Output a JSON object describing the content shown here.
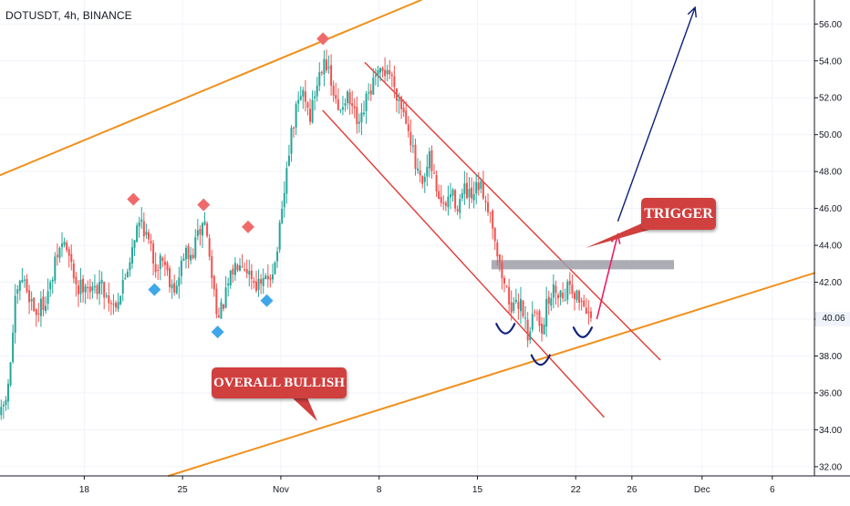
{
  "header": {
    "symbol": "DOTUSDT",
    "interval": "4h",
    "exchange": "BINANCE",
    "separator": ", "
  },
  "colors": {
    "up": "#26a69a",
    "down": "#ef5350",
    "channel": "#f0901c",
    "downtrend": "#e53935",
    "resistance_box": "#9e9ea8",
    "callout": "#d0403f",
    "target_arrow": "#0d1f7a",
    "trigger_arrow": "#e91e63",
    "pivot_high": "#ef6b6b",
    "pivot_low": "#3fa7e8",
    "cup": "#12227a",
    "axis_text": "#131722",
    "grid": "#e0e3eb"
  },
  "callouts": {
    "trigger": "TRIGGER",
    "overall_bullish": "OVERALL BULLISH"
  },
  "chart_data": {
    "type": "candlestick",
    "title": "DOTUSDT, 4h, BINANCE",
    "y_axis": {
      "side": "right",
      "range": [
        31.5,
        57.3
      ],
      "ticks": [
        32,
        34,
        36,
        38,
        40,
        42,
        44,
        46,
        48,
        50,
        52,
        54,
        56
      ],
      "tick_labels": [
        "32.00",
        "34.00",
        "36.00",
        "38.00",
        "40.00",
        "42.00",
        "44.00",
        "46.00",
        "48.00",
        "50.00",
        "52.00",
        "54.00",
        "56.00"
      ],
      "last_price": 40.06,
      "last_price_label": "40.06"
    },
    "x_axis": {
      "range": [
        "2021-10-12",
        "2021-12-09"
      ],
      "ticks": [
        {
          "date": "2021-10-18",
          "label": "18"
        },
        {
          "date": "2021-10-25",
          "label": "25"
        },
        {
          "date": "2021-11-01",
          "label": "Nov"
        },
        {
          "date": "2021-11-08",
          "label": "8"
        },
        {
          "date": "2021-11-15",
          "label": "15"
        },
        {
          "date": "2021-11-22",
          "label": "22"
        },
        {
          "date": "2021-11-26",
          "label": "26"
        },
        {
          "date": "2021-12-01",
          "label": "Dec"
        },
        {
          "date": "2021-12-06",
          "label": "6"
        }
      ]
    },
    "price_path": [
      [
        "2021-10-12",
        34.8
      ],
      [
        "2021-10-12T12:00",
        36.2
      ],
      [
        "2021-10-13",
        40.8
      ],
      [
        "2021-10-13T12:00",
        42.2
      ],
      [
        "2021-10-14",
        41.3
      ],
      [
        "2021-10-14T12:00",
        40.3
      ],
      [
        "2021-10-15",
        40.9
      ],
      [
        "2021-10-15T12:00",
        41.7
      ],
      [
        "2021-10-16",
        43.5
      ],
      [
        "2021-10-16T12:00",
        44.2
      ],
      [
        "2021-10-17",
        42.8
      ],
      [
        "2021-10-17T12:00",
        41.6
      ],
      [
        "2021-10-18",
        42.1
      ],
      [
        "2021-10-18T12:00",
        41.4
      ],
      [
        "2021-10-19",
        42.0
      ],
      [
        "2021-10-19T12:00",
        41.3
      ],
      [
        "2021-10-20",
        40.8
      ],
      [
        "2021-10-20T12:00",
        41.4
      ],
      [
        "2021-10-21",
        42.8
      ],
      [
        "2021-10-21T12:00",
        44.6
      ],
      [
        "2021-10-22",
        45.4
      ],
      [
        "2021-10-22T12:00",
        44.1
      ],
      [
        "2021-10-23",
        42.9
      ],
      [
        "2021-10-23T12:00",
        43.4
      ],
      [
        "2021-10-24",
        42.2
      ],
      [
        "2021-10-24T12:00",
        41.6
      ],
      [
        "2021-10-25",
        43.6
      ],
      [
        "2021-10-25T12:00",
        43.2
      ],
      [
        "2021-10-26",
        44.5
      ],
      [
        "2021-10-26T12:00",
        45.4
      ],
      [
        "2021-10-27",
        42.3
      ],
      [
        "2021-10-27T12:00",
        40.0
      ],
      [
        "2021-10-28",
        41.3
      ],
      [
        "2021-10-28T12:00",
        42.6
      ],
      [
        "2021-10-29",
        43.4
      ],
      [
        "2021-10-29T12:00",
        42.8
      ],
      [
        "2021-10-30",
        42.1
      ],
      [
        "2021-10-30T12:00",
        41.7
      ],
      [
        "2021-10-31",
        42.3
      ],
      [
        "2021-10-31T12:00",
        43.0
      ],
      [
        "2021-11-01",
        45.6
      ],
      [
        "2021-11-01T12:00",
        49.2
      ],
      [
        "2021-11-02",
        51.3
      ],
      [
        "2021-11-02T12:00",
        52.4
      ],
      [
        "2021-11-03",
        51.0
      ],
      [
        "2021-11-03T12:00",
        52.8
      ],
      [
        "2021-11-04",
        54.4
      ],
      [
        "2021-11-04T12:00",
        52.6
      ],
      [
        "2021-11-05",
        51.2
      ],
      [
        "2021-11-05T12:00",
        52.1
      ],
      [
        "2021-11-06",
        51.4
      ],
      [
        "2021-11-06T12:00",
        50.2
      ],
      [
        "2021-11-07",
        51.8
      ],
      [
        "2021-11-07T12:00",
        52.8
      ],
      [
        "2021-11-08",
        53.2
      ],
      [
        "2021-11-08T12:00",
        53.6
      ],
      [
        "2021-11-09",
        52.7
      ],
      [
        "2021-11-09T12:00",
        51.6
      ],
      [
        "2021-11-10",
        50.6
      ],
      [
        "2021-11-10T12:00",
        48.2
      ],
      [
        "2021-11-11",
        47.0
      ],
      [
        "2021-11-11T12:00",
        48.6
      ],
      [
        "2021-11-12",
        47.1
      ],
      [
        "2021-11-12T12:00",
        45.9
      ],
      [
        "2021-11-13",
        46.8
      ],
      [
        "2021-11-13T12:00",
        46.2
      ],
      [
        "2021-11-14",
        46.9
      ],
      [
        "2021-11-14T12:00",
        46.4
      ],
      [
        "2021-11-15",
        47.2
      ],
      [
        "2021-11-15T12:00",
        46.6
      ],
      [
        "2021-11-16",
        45.3
      ],
      [
        "2021-11-16T12:00",
        42.8
      ],
      [
        "2021-11-17",
        41.5
      ],
      [
        "2021-11-17T12:00",
        40.4
      ],
      [
        "2021-11-18",
        41.1
      ],
      [
        "2021-11-18T12:00",
        39.2
      ],
      [
        "2021-11-19",
        40.4
      ],
      [
        "2021-11-19T12:00",
        39.6
      ],
      [
        "2021-11-20",
        41.1
      ],
      [
        "2021-11-20T12:00",
        41.7
      ],
      [
        "2021-11-21",
        41.3
      ],
      [
        "2021-11-21T12:00",
        42.0
      ],
      [
        "2021-11-22",
        41.2
      ],
      [
        "2021-11-22T12:00",
        40.9
      ],
      [
        "2021-11-23",
        40.06
      ]
    ],
    "pivot_highs": [
      {
        "date": "2021-10-21T12:00",
        "price": 46.5
      },
      {
        "date": "2021-10-26T12:00",
        "price": 46.2
      },
      {
        "date": "2021-10-29T16:00",
        "price": 45.0
      },
      {
        "date": "2021-11-04",
        "price": 55.2
      }
    ],
    "pivot_lows": [
      {
        "date": "2021-10-23",
        "price": 41.6
      },
      {
        "date": "2021-10-27T12:00",
        "price": 39.3
      },
      {
        "date": "2021-10-31",
        "price": 41.0
      }
    ],
    "annotations": {
      "ascending_channel_upper": [
        [
          "2021-10-12",
          47.8
        ],
        [
          "2021-11-11",
          57.3
        ]
      ],
      "ascending_channel_lower": [
        [
          "2021-10-24",
          31.5
        ],
        [
          "2021-12-09",
          42.5
        ]
      ],
      "descending_channel_upper": [
        [
          "2021-11-07",
          53.9
        ],
        [
          "2021-11-28",
          37.8
        ]
      ],
      "descending_channel_lower": [
        [
          "2021-11-04",
          51.3
        ],
        [
          "2021-11-24",
          34.7
        ]
      ],
      "resistance_zone": {
        "from": "2021-11-16",
        "to": "2021-11-29",
        "low": 42.7,
        "high": 43.2
      },
      "trigger_arrow": [
        [
          "2021-11-23T12:00",
          40.0
        ],
        [
          "2021-11-25",
          44.6
        ]
      ],
      "target_arrow": [
        [
          "2021-11-25",
          45.3
        ],
        [
          "2021-11-30T12:00",
          56.9
        ]
      ],
      "cup_lows": [
        {
          "date": "2021-11-17",
          "price": 39.3
        },
        {
          "date": "2021-11-19T12:00",
          "price": 37.6
        },
        {
          "date": "2021-11-22T12:00",
          "price": 39.1
        }
      ]
    }
  }
}
